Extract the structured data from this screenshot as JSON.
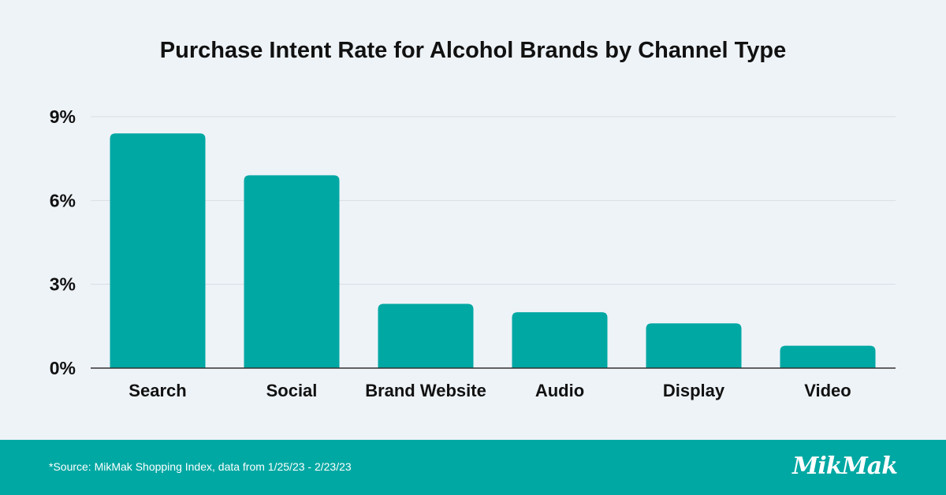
{
  "colors": {
    "background": "#eef3f8",
    "bar": "#00a8a3",
    "grid": "#d6dde4",
    "axis": "#333333",
    "footer": "#00a8a3",
    "text": "#111111"
  },
  "chart_data": {
    "type": "bar",
    "title": "Purchase Intent Rate for Alcohol Brands by Channel Type",
    "xlabel": "",
    "ylabel": "",
    "categories": [
      "Search",
      "Social",
      "Brand Website",
      "Audio",
      "Display",
      "Video"
    ],
    "values": [
      8.4,
      6.9,
      2.3,
      2.0,
      1.6,
      0.8
    ],
    "value_unit": "%",
    "ylim": [
      0,
      9
    ],
    "yticks": [
      {
        "value": 0,
        "label": "0%"
      },
      {
        "value": 3,
        "label": "3%"
      },
      {
        "value": 6,
        "label": "6%"
      },
      {
        "value": 9,
        "label": "9%"
      }
    ],
    "grid": true,
    "legend": "none"
  },
  "footer": {
    "source": "*Source: MikMak Shopping Index, data from 1/25/23 - 2/23/23",
    "logo": "MikMak"
  }
}
